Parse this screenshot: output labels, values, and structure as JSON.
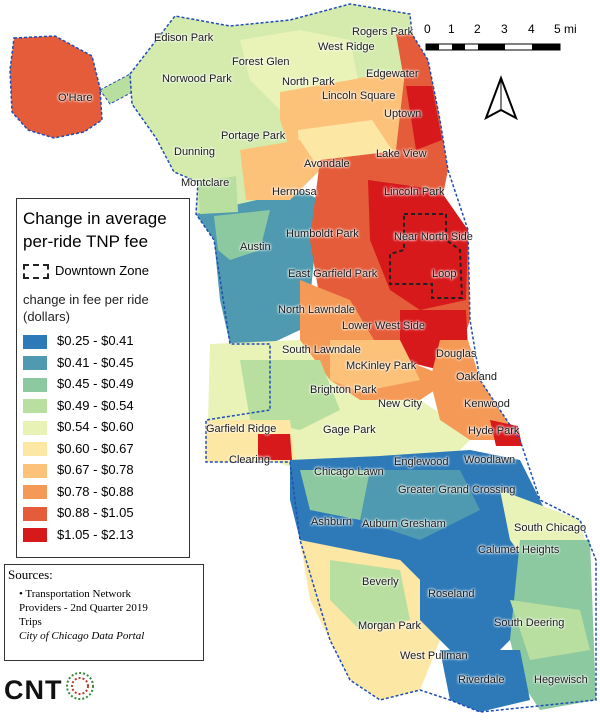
{
  "legend": {
    "title_line1": "Change in average",
    "title_line2": "per-ride TNP fee",
    "downtown_label": "Downtown Zone",
    "subtitle_line1": "change in fee per ride",
    "subtitle_line2": "(dollars)",
    "classes": [
      {
        "label": "$0.25 - $0.41",
        "color": "#2e7ab8"
      },
      {
        "label": "$0.41 - $0.45",
        "color": "#4f9ab0"
      },
      {
        "label": "$0.45 - $0.49",
        "color": "#8cc8a0"
      },
      {
        "label": "$0.49 - $0.54",
        "color": "#b8dfa0"
      },
      {
        "label": "$0.54 - $0.60",
        "color": "#e7f2b4"
      },
      {
        "label": "$0.60 - $0.67",
        "color": "#fde7a4"
      },
      {
        "label": "$0.67 - $0.78",
        "color": "#fcc27a"
      },
      {
        "label": "$0.78 - $0.88",
        "color": "#f59a56"
      },
      {
        "label": "$0.88 - $1.05",
        "color": "#e45c3a"
      },
      {
        "label": "$1.05 - $2.13",
        "color": "#d7191c"
      }
    ]
  },
  "sources": {
    "heading": "Sources:",
    "line1": "Transportation Network",
    "line2": "Providers - 2nd Quarter 2019",
    "line3": "Trips",
    "line4": "City of Chicago Data Portal"
  },
  "scale": {
    "ticks": [
      "0",
      "1",
      "2",
      "3",
      "4",
      "5 mi"
    ]
  },
  "logo": "CNT",
  "labels": {
    "edison_park": "Edison Park",
    "rogers_park": "Rogers Park",
    "west_ridge": "West Ridge",
    "ohare": "O'Hare",
    "forest_glen": "Forest Glen",
    "norwood_park": "Norwood Park",
    "north_park": "North Park",
    "edgewater": "Edgewater",
    "lincoln_square": "Lincoln Square",
    "uptown": "Uptown",
    "portage_park": "Portage Park",
    "dunning": "Dunning",
    "lake_view": "Lake View",
    "avondale": "Avondale",
    "montclare": "Montclare",
    "hermosa": "Hermosa",
    "lincoln_park": "Lincoln Park",
    "humboldt_park": "Humboldt Park",
    "near_north_side": "Near North Side",
    "austin": "Austin",
    "east_garfield_park": "East Garfield Park",
    "loop": "Loop",
    "north_lawndale": "North Lawndale",
    "lower_west_side": "Lower West Side",
    "south_lawndale": "South Lawndale",
    "douglas": "Douglas",
    "mckinley_park": "McKinley Park",
    "oakland": "Oakland",
    "brighton_park": "Brighton Park",
    "new_city": "New City",
    "kenwood": "Kenwood",
    "garfield_ridge": "Garfield Ridge",
    "gage_park": "Gage Park",
    "hyde_park": "Hyde Park",
    "clearing": "Clearing",
    "englewood": "Englewood",
    "woodlawn": "Woodlawn",
    "chicago_lawn": "Chicago Lawn",
    "greater_grand_crossing": "Greater Grand Crossing",
    "ashburn": "Ashburn",
    "auburn_gresham": "Auburn Gresham",
    "south_chicago": "South Chicago",
    "calumet_heights": "Calumet Heights",
    "beverly": "Beverly",
    "roseland": "Roseland",
    "morgan_park": "Morgan Park",
    "south_deering": "South Deering",
    "west_pullman": "West Pullman",
    "riverdale": "Riverdale",
    "hegewisch": "Hegewisch"
  }
}
